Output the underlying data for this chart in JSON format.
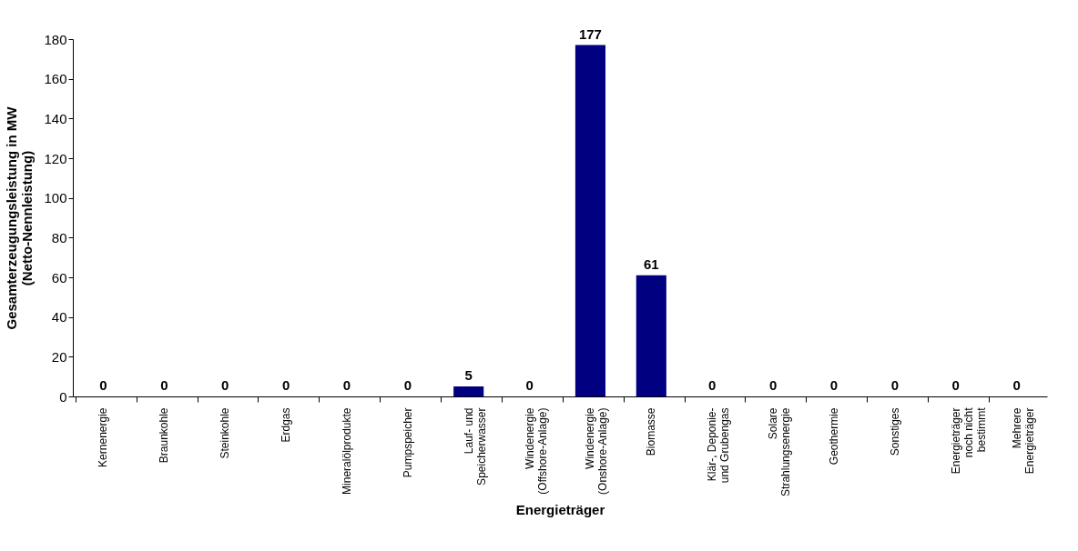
{
  "chart_data": {
    "type": "bar",
    "xlabel": "Energieträger",
    "ylabel": "Gesamterzeugungsleistung in MW (Netto-Nennleistung)",
    "categories": [
      "Kernenergie",
      "Braunkohle",
      "Steinkohle",
      "Erdgas",
      "Mineralölprodukte",
      "Pumpspeicher",
      "Lauf- und Speicherwasser",
      "Windenergie (Offshore-Anlage)",
      "Windenergie (Onshore-Anlage)",
      "Biomasse",
      "Klär-, Deponie- und Grubengas",
      "Solare Strahlungsenergie",
      "Geothermie",
      "Sonstiges",
      "Energieträger noch nicht bestimmt",
      "Mehrere Energieträger"
    ],
    "values": [
      0,
      0,
      0,
      0,
      0,
      0,
      5,
      0,
      177,
      61,
      0,
      0,
      0,
      0,
      0,
      0
    ],
    "color": "#000080",
    "ylim": [
      0,
      180
    ],
    "yticks": [
      0,
      20,
      40,
      60,
      80,
      100,
      120,
      140,
      160,
      180
    ],
    "data_labels": true,
    "grid": false
  }
}
